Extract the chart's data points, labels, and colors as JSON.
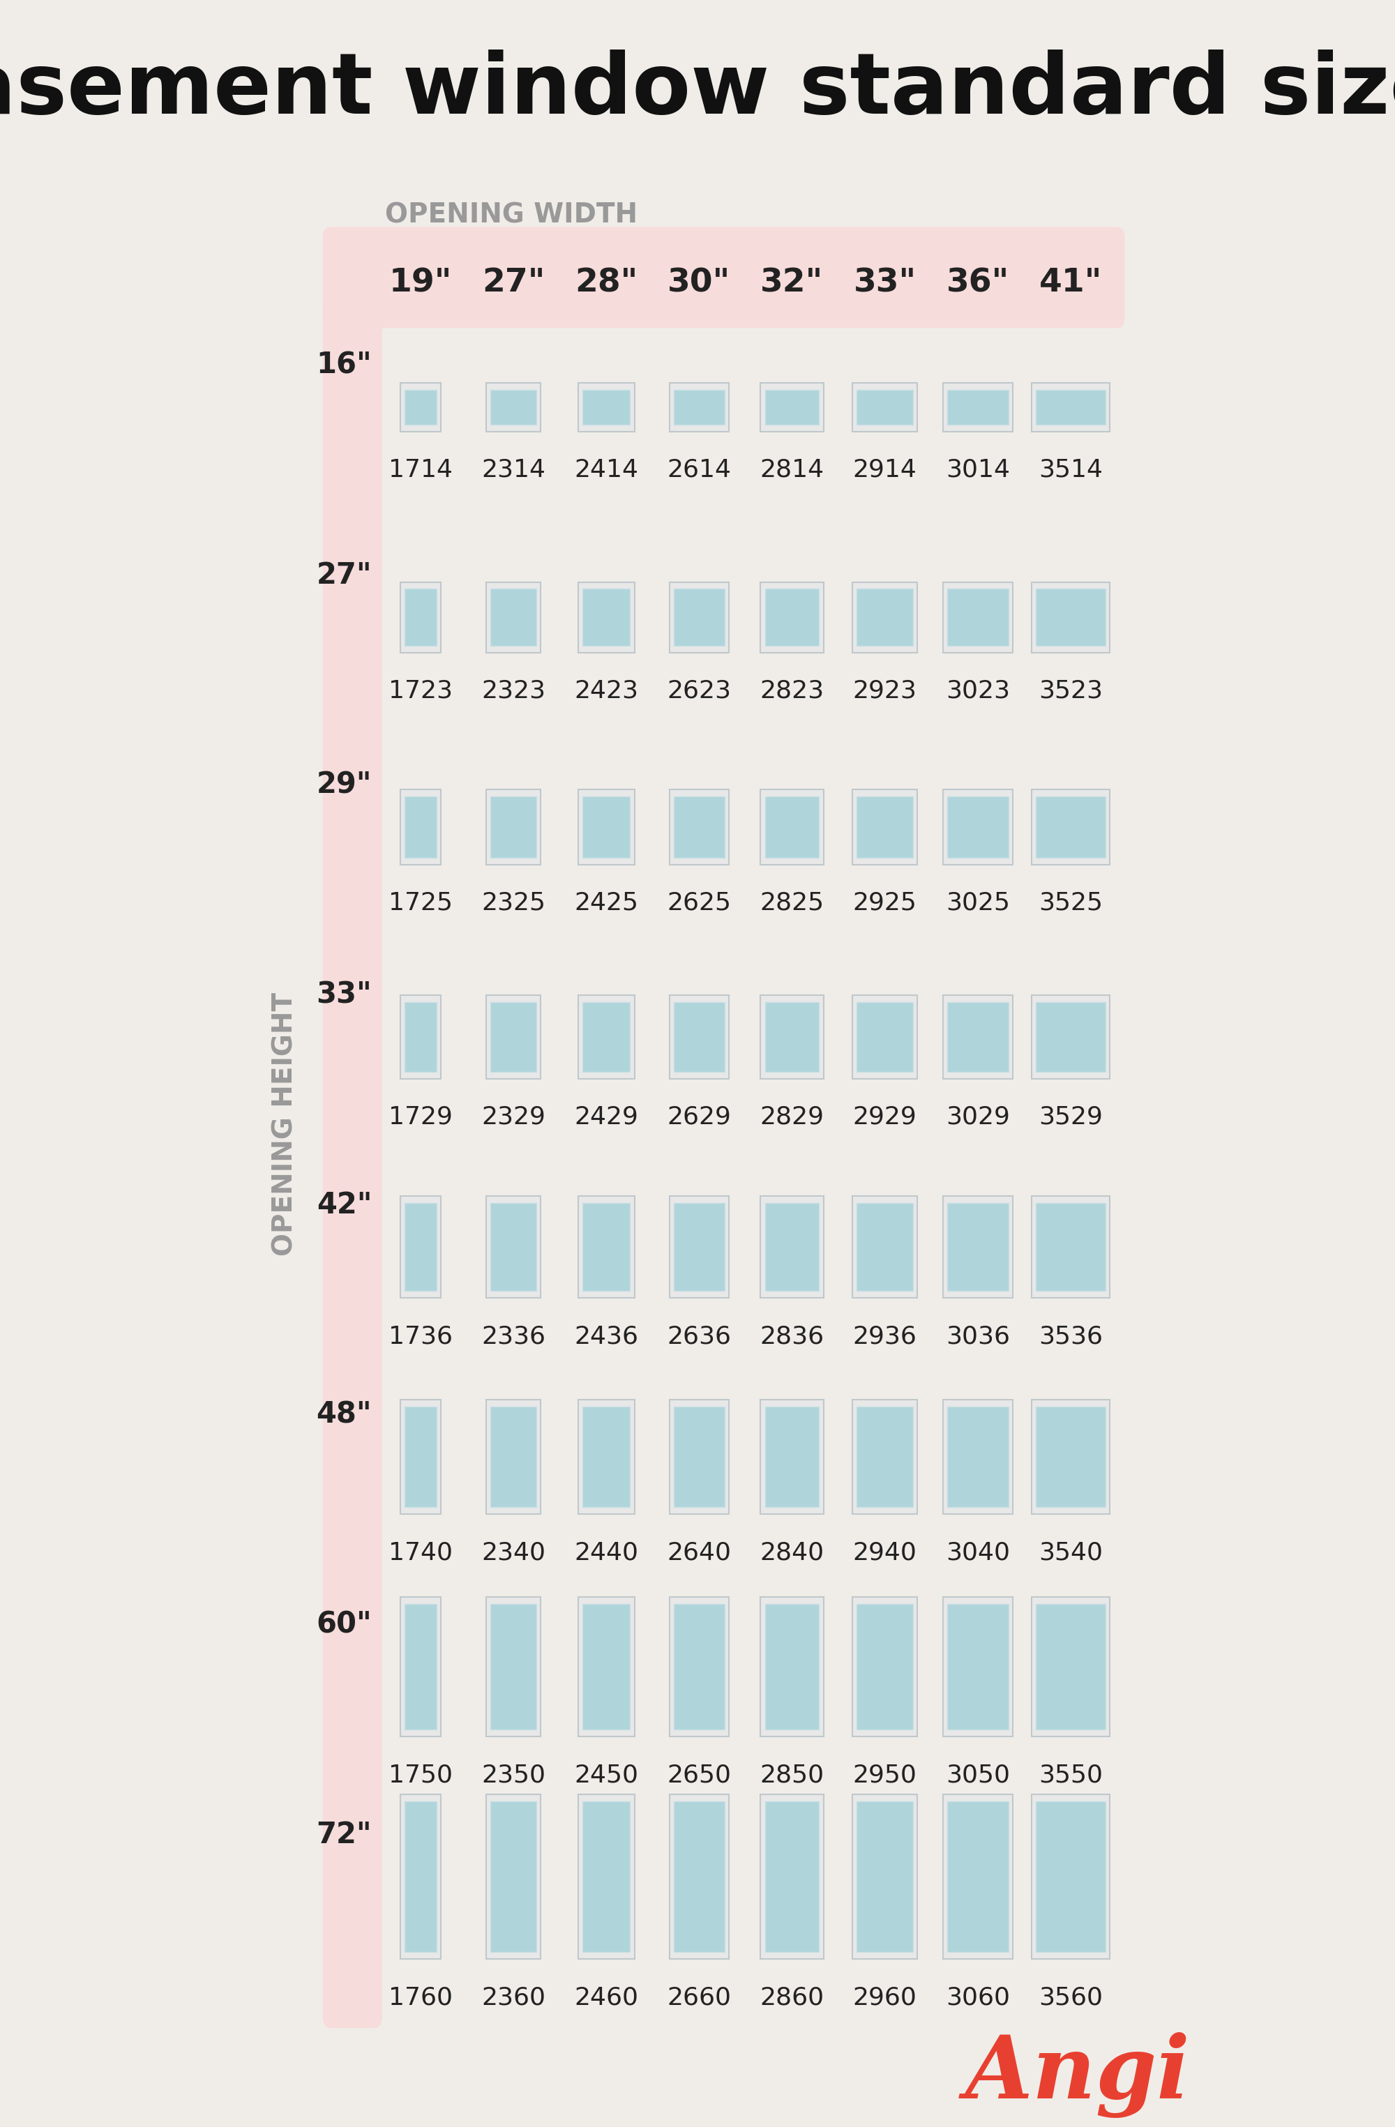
{
  "title": "Casement window standard sizes",
  "bg_color": "#f0ede8",
  "pink_bg": "#f7dcdc",
  "window_fill": "#afd5db",
  "window_border": "#c8dfe3",
  "window_frame": "#e8e8e8",
  "title_color": "#111111",
  "label_color": "#999999",
  "row_label_color": "#222222",
  "col_label_color": "#222222",
  "code_color": "#222222",
  "angi_color": "#e84030",
  "col_widths_in": [
    19,
    27,
    28,
    30,
    32,
    33,
    36,
    41
  ],
  "col_labels": [
    "19\"",
    "27\"",
    "28\"",
    "30\"",
    "32\"",
    "33\"",
    "36\"",
    "41\""
  ],
  "row_heights_in": [
    16,
    27,
    29,
    33,
    42,
    48,
    60,
    72
  ],
  "row_labels": [
    "16\"",
    "27\"",
    "29\"",
    "33\"",
    "42\"",
    "48\"",
    "60\"",
    "72\""
  ],
  "codes": [
    [
      "1714",
      "2314",
      "2414",
      "2614",
      "2814",
      "2914",
      "3014",
      "3514"
    ],
    [
      "1723",
      "2323",
      "2423",
      "2623",
      "2823",
      "2923",
      "3023",
      "3523"
    ],
    [
      "1725",
      "2325",
      "2425",
      "2625",
      "2825",
      "2925",
      "3025",
      "3525"
    ],
    [
      "1729",
      "2329",
      "2429",
      "2629",
      "2829",
      "2929",
      "3029",
      "3529"
    ],
    [
      "1736",
      "2336",
      "2436",
      "2636",
      "2836",
      "2936",
      "3036",
      "3536"
    ],
    [
      "1740",
      "2340",
      "2440",
      "2640",
      "2840",
      "2940",
      "3040",
      "3540"
    ],
    [
      "1750",
      "2350",
      "2450",
      "2650",
      "2850",
      "2950",
      "3050",
      "3550"
    ],
    [
      "1760",
      "2360",
      "2460",
      "2660",
      "2860",
      "2960",
      "3060",
      "3560"
    ]
  ]
}
